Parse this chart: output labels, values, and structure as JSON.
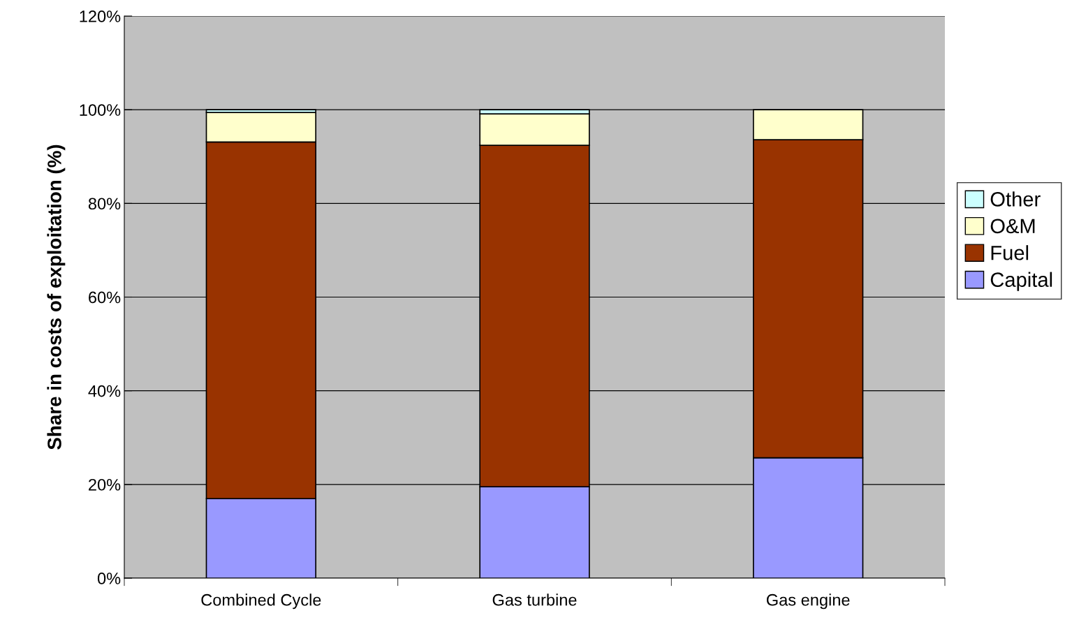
{
  "chart_data": {
    "type": "bar",
    "stacked": true,
    "ylabel": "Share in costs of exploitation (%)",
    "categories": [
      "Combined Cycle",
      "Gas turbine",
      "Gas engine"
    ],
    "series": [
      {
        "name": "Capital",
        "color": "#9999ff",
        "values": [
          17,
          19.5,
          25.7
        ]
      },
      {
        "name": "Fuel",
        "color": "#993300",
        "values": [
          76.1,
          72.9,
          67.9
        ]
      },
      {
        "name": "O&M",
        "color": "#ffffcc",
        "values": [
          6.3,
          6.7,
          6.4
        ]
      },
      {
        "name": "Other",
        "color": "#ccffff",
        "values": [
          0.6,
          0.9,
          null
        ]
      }
    ],
    "ylim": [
      0,
      120
    ],
    "yticks": [
      {
        "value": 0,
        "label": "0%"
      },
      {
        "value": 20,
        "label": "20%"
      },
      {
        "value": 40,
        "label": "40%"
      },
      {
        "value": 60,
        "label": "60%"
      },
      {
        "value": 80,
        "label": "80%"
      },
      {
        "value": 100,
        "label": "100%"
      },
      {
        "value": 120,
        "label": "120%"
      }
    ],
    "grid": "y",
    "legend": "right"
  }
}
